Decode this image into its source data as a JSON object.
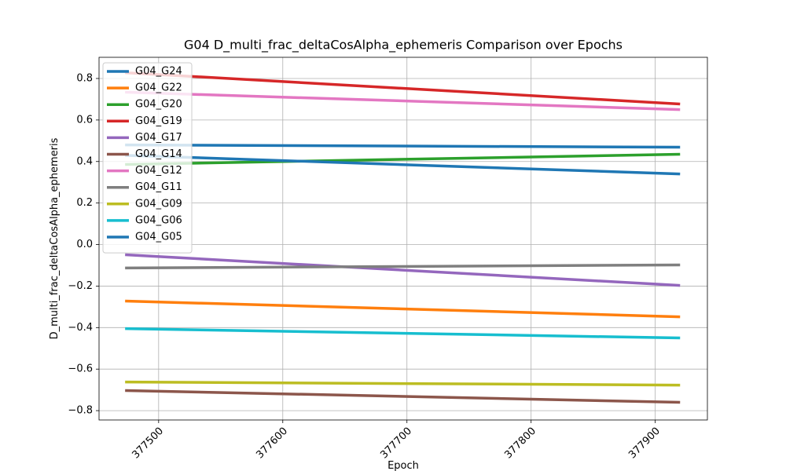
{
  "chart_data": {
    "type": "line",
    "title": "G04 D_multi_frac_deltaCosAlpha_ephemeris Comparison over Epochs",
    "xlabel": "Epoch",
    "ylabel": "D_multi_frac_deltaCosAlpha_ephemeris",
    "x": [
      377473,
      377920
    ],
    "series": [
      {
        "name": "G04_G24",
        "color": "#1f77b4",
        "values": [
          0.48,
          0.469
        ]
      },
      {
        "name": "G04_G22",
        "color": "#ff7f0e",
        "values": [
          -0.272,
          -0.348
        ]
      },
      {
        "name": "G04_G20",
        "color": "#2ca02c",
        "values": [
          0.386,
          0.435
        ]
      },
      {
        "name": "G04_G19",
        "color": "#d62728",
        "values": [
          0.828,
          0.677
        ]
      },
      {
        "name": "G04_G17",
        "color": "#9467bd",
        "values": [
          -0.049,
          -0.197
        ]
      },
      {
        "name": "G04_G14",
        "color": "#8c564b",
        "values": [
          -0.703,
          -0.76
        ]
      },
      {
        "name": "G04_G12",
        "color": "#e377c2",
        "values": [
          0.734,
          0.65
        ]
      },
      {
        "name": "G04_G11",
        "color": "#7f7f7f",
        "values": [
          -0.113,
          -0.098
        ]
      },
      {
        "name": "G04_G09",
        "color": "#bcbd22",
        "values": [
          -0.662,
          -0.677
        ]
      },
      {
        "name": "G04_G06",
        "color": "#17becf",
        "values": [
          -0.405,
          -0.45
        ]
      },
      {
        "name": "G04_G05",
        "color": "#1f77b4",
        "values": [
          0.43,
          0.34
        ]
      }
    ],
    "xlim": [
      377452,
      377942
    ],
    "ylim": [
      -0.845,
      0.902
    ],
    "xticks": [
      377500,
      377600,
      377700,
      377800,
      377900
    ],
    "yticks": [
      {
        "value": -0.8,
        "label": "−0.8"
      },
      {
        "value": -0.6,
        "label": "−0.6"
      },
      {
        "value": -0.4,
        "label": "−0.4"
      },
      {
        "value": -0.2,
        "label": "−0.2"
      },
      {
        "value": 0,
        "label": "0.0"
      },
      0.2,
      0.4,
      0.6,
      0.8
    ],
    "grid": true,
    "legend": "upper left"
  }
}
